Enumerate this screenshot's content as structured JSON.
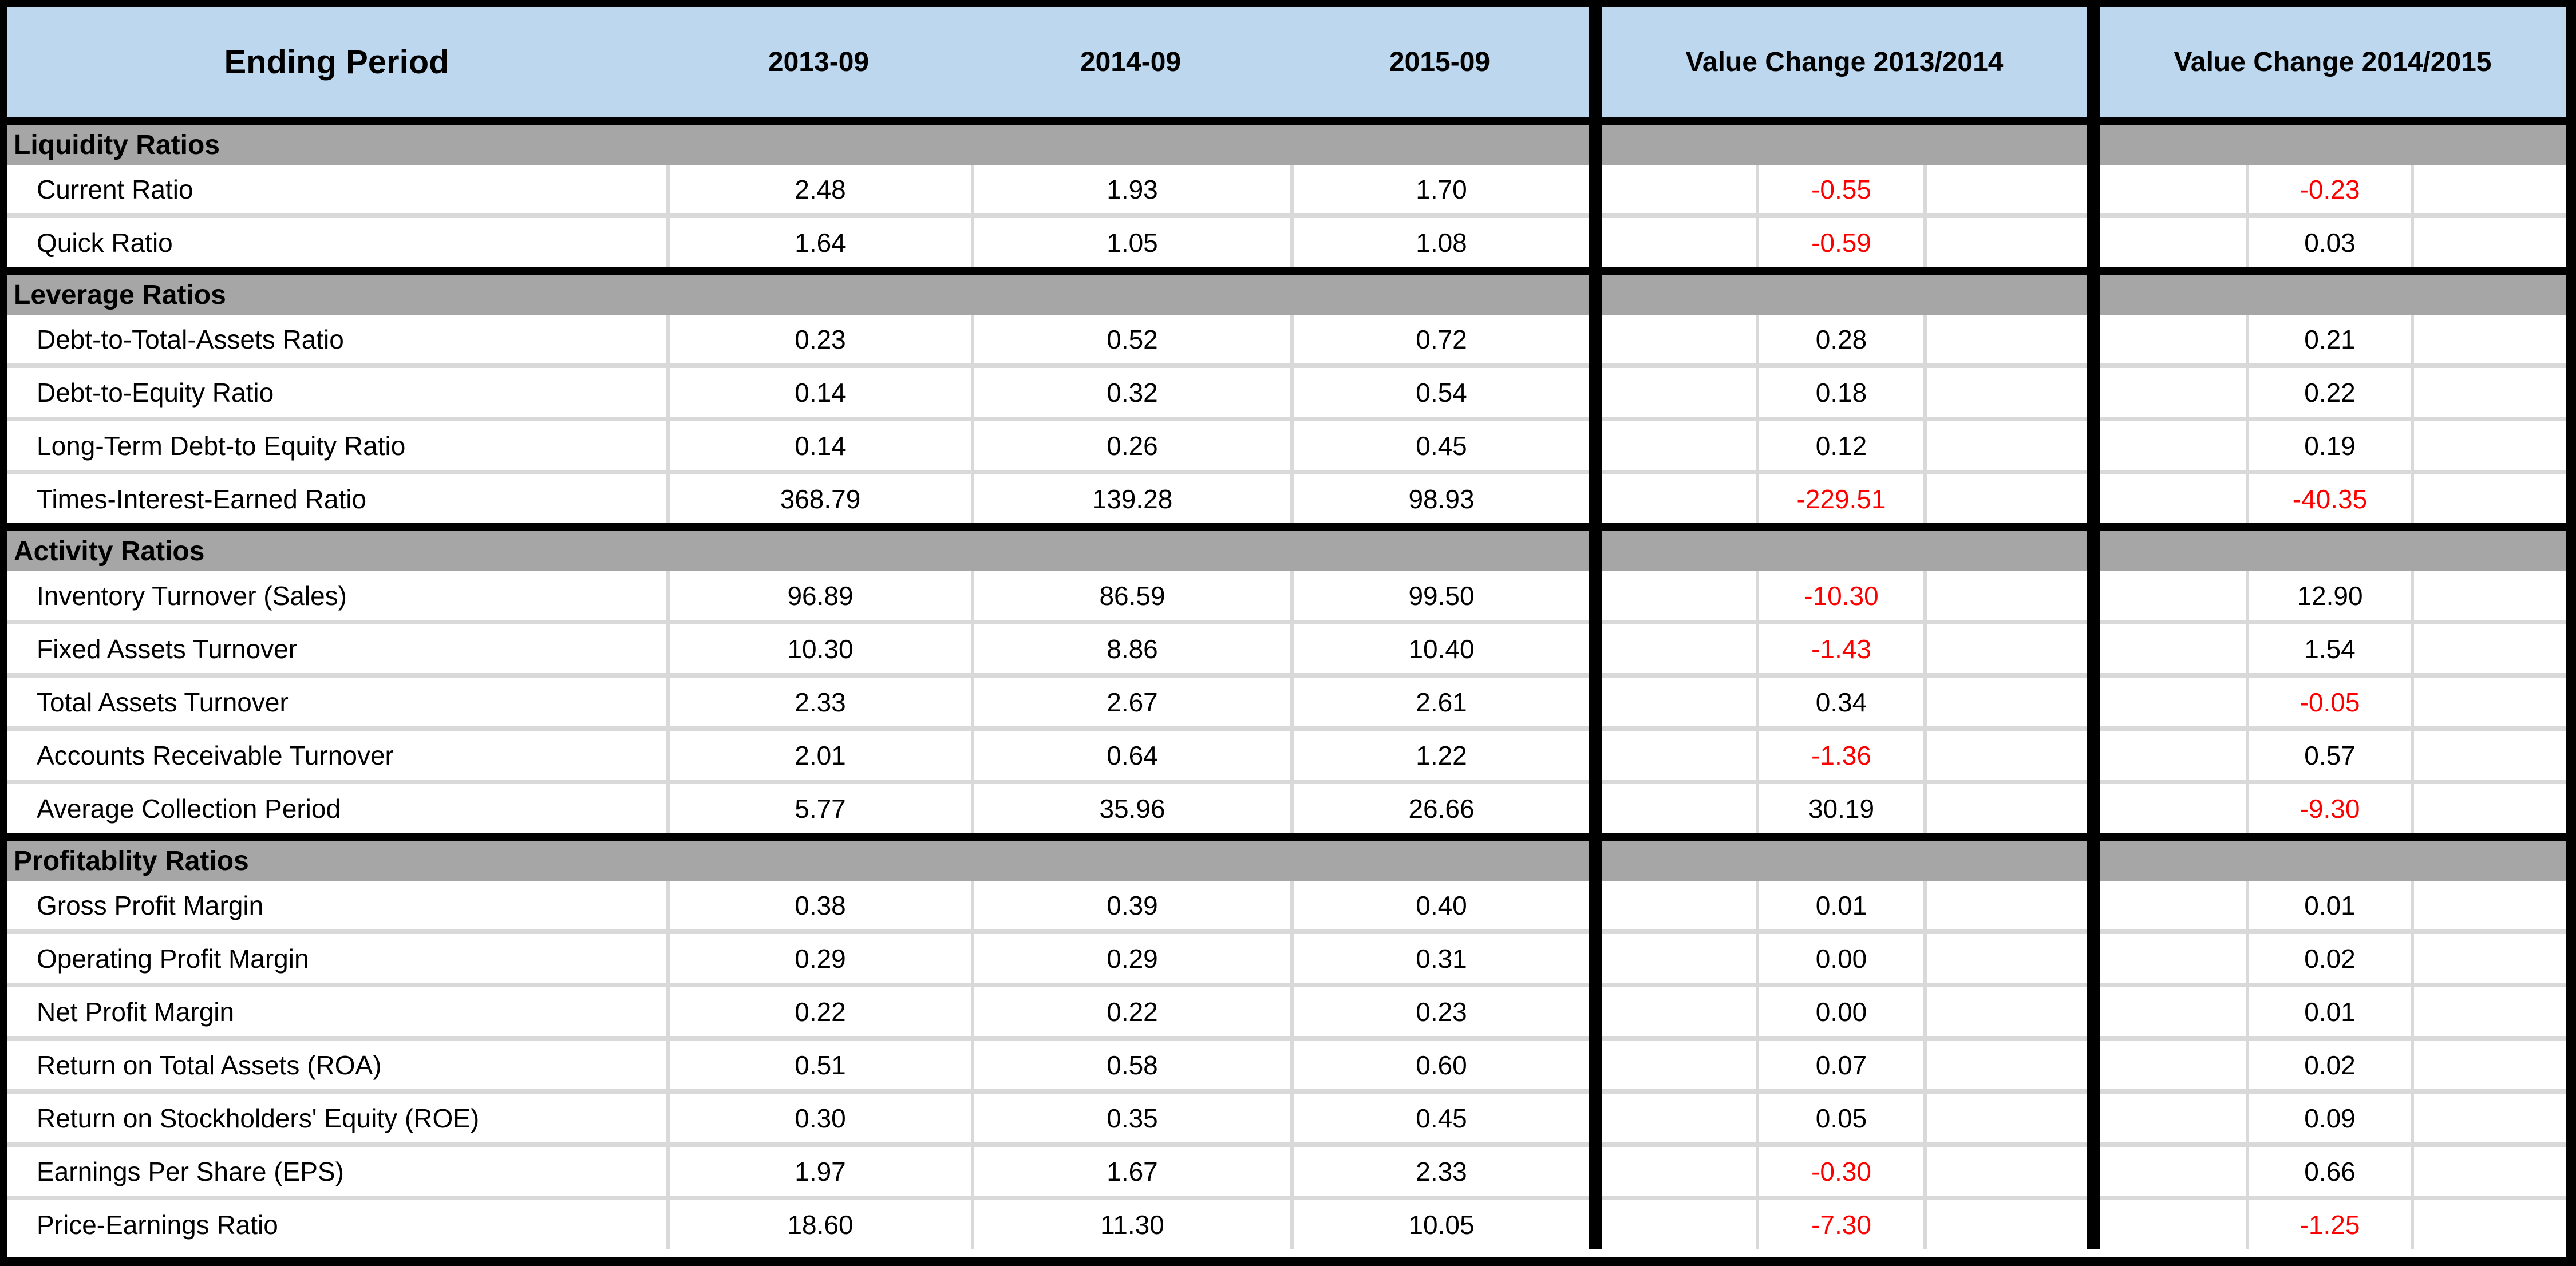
{
  "table": {
    "header": {
      "period": "Ending Period",
      "years": [
        "2013-09",
        "2014-09",
        "2015-09"
      ],
      "changes": [
        "Value Change 2013/2014",
        "Value Change 2014/2015"
      ]
    },
    "sections": [
      {
        "title": "Liquidity Ratios",
        "rows": [
          {
            "label": "Current Ratio",
            "values": [
              "2.48",
              "1.93",
              "1.70"
            ],
            "changes": [
              "-0.55",
              "-0.23"
            ]
          },
          {
            "label": "Quick Ratio",
            "values": [
              "1.64",
              "1.05",
              "1.08"
            ],
            "changes": [
              "-0.59",
              "0.03"
            ]
          }
        ]
      },
      {
        "title": "Leverage Ratios",
        "rows": [
          {
            "label": "Debt-to-Total-Assets Ratio",
            "values": [
              "0.23",
              "0.52",
              "0.72"
            ],
            "changes": [
              "0.28",
              "0.21"
            ]
          },
          {
            "label": "Debt-to-Equity Ratio",
            "values": [
              "0.14",
              "0.32",
              "0.54"
            ],
            "changes": [
              "0.18",
              "0.22"
            ]
          },
          {
            "label": "Long-Term Debt-to Equity Ratio",
            "values": [
              "0.14",
              "0.26",
              "0.45"
            ],
            "changes": [
              "0.12",
              "0.19"
            ]
          },
          {
            "label": "Times-Interest-Earned Ratio",
            "values": [
              "368.79",
              "139.28",
              "98.93"
            ],
            "changes": [
              "-229.51",
              "-40.35"
            ]
          }
        ]
      },
      {
        "title": "Activity Ratios",
        "rows": [
          {
            "label": "Inventory Turnover (Sales)",
            "values": [
              "96.89",
              "86.59",
              "99.50"
            ],
            "changes": [
              "-10.30",
              "12.90"
            ]
          },
          {
            "label": "Fixed Assets Turnover",
            "values": [
              "10.30",
              "8.86",
              "10.40"
            ],
            "changes": [
              "-1.43",
              "1.54"
            ]
          },
          {
            "label": "Total Assets Turnover",
            "values": [
              "2.33",
              "2.67",
              "2.61"
            ],
            "changes": [
              "0.34",
              "-0.05"
            ]
          },
          {
            "label": "Accounts Receivable Turnover",
            "values": [
              "2.01",
              "0.64",
              "1.22"
            ],
            "changes": [
              "-1.36",
              "0.57"
            ]
          },
          {
            "label": "Average Collection Period",
            "values": [
              "5.77",
              "35.96",
              "26.66"
            ],
            "changes": [
              "30.19",
              "-9.30"
            ]
          }
        ]
      },
      {
        "title": "Profitablity Ratios",
        "rows": [
          {
            "label": "Gross Profit Margin",
            "values": [
              "0.38",
              "0.39",
              "0.40"
            ],
            "changes": [
              "0.01",
              "0.01"
            ]
          },
          {
            "label": "Operating Profit Margin",
            "values": [
              "0.29",
              "0.29",
              "0.31"
            ],
            "changes": [
              "0.00",
              "0.02"
            ]
          },
          {
            "label": "Net Profit Margin",
            "values": [
              "0.22",
              "0.22",
              "0.23"
            ],
            "changes": [
              "0.00",
              "0.01"
            ]
          },
          {
            "label": "Return on Total Assets (ROA)",
            "values": [
              "0.51",
              "0.58",
              "0.60"
            ],
            "changes": [
              "0.07",
              "0.02"
            ]
          },
          {
            "label": "Return on Stockholders' Equity (ROE)",
            "values": [
              "0.30",
              "0.35",
              "0.45"
            ],
            "changes": [
              "0.05",
              "0.09"
            ]
          },
          {
            "label": "Earnings Per Share (EPS)",
            "values": [
              "1.97",
              "1.67",
              "2.33"
            ],
            "changes": [
              "-0.30",
              "0.66"
            ]
          },
          {
            "label": "Price-Earnings Ratio",
            "values": [
              "18.60",
              "11.30",
              "10.05"
            ],
            "changes": [
              "-7.30",
              "-1.25"
            ]
          }
        ]
      }
    ]
  },
  "colors": {
    "header_bg": "#BDD7EE",
    "section_bg": "#A6A6A6",
    "grid_light": "#D9D9D9",
    "border_black": "#000000",
    "row_bg": "#FFFFFF",
    "negative_value": "#FF0000",
    "positive_value": "#000000"
  }
}
